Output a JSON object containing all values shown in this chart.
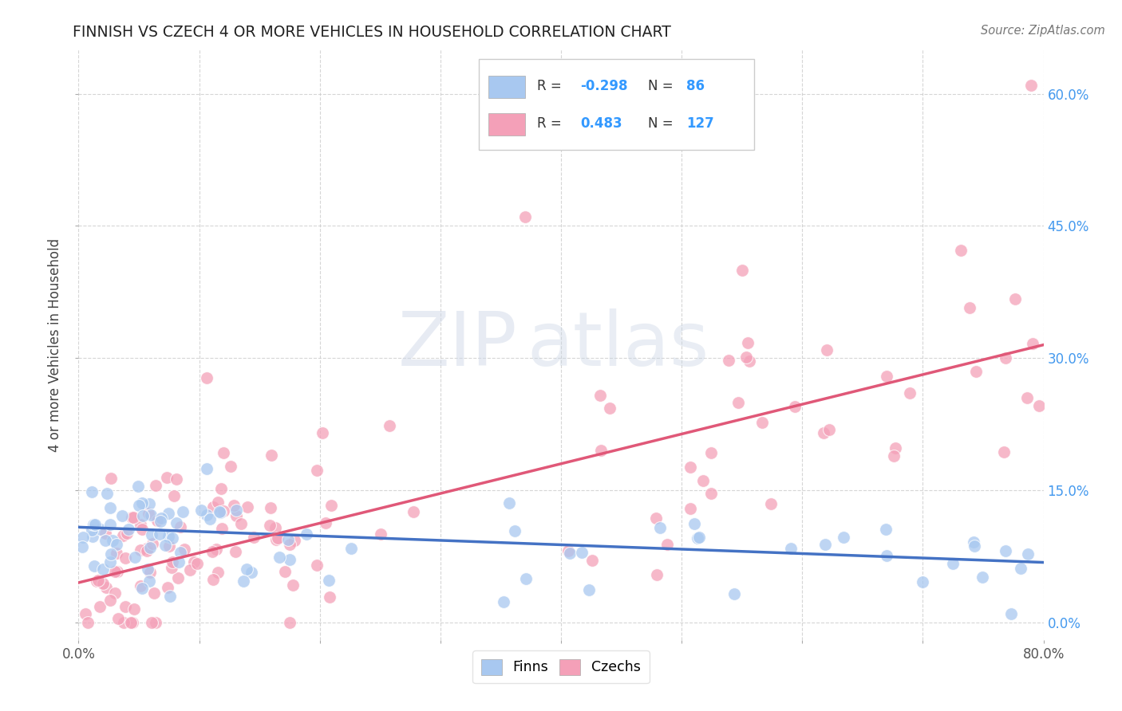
{
  "title": "FINNISH VS CZECH 4 OR MORE VEHICLES IN HOUSEHOLD CORRELATION CHART",
  "source": "Source: ZipAtlas.com",
  "ylabel": "4 or more Vehicles in Household",
  "xlim": [
    0.0,
    0.8
  ],
  "ylim": [
    -0.02,
    0.65
  ],
  "legend_r_finn": "-0.298",
  "legend_n_finn": "86",
  "legend_r_czech": "0.483",
  "legend_n_czech": "127",
  "finn_color": "#a8c8f0",
  "czech_color": "#f4a0b8",
  "finn_line_color": "#4472c4",
  "czech_line_color": "#e05878",
  "background_color": "#ffffff",
  "grid_color": "#cccccc",
  "watermark_zip": "ZIP",
  "watermark_atlas": "atlas",
  "finn_line_x0": 0.0,
  "finn_line_x1": 0.8,
  "finn_line_y0": 0.108,
  "finn_line_y1": 0.068,
  "czech_line_x0": 0.0,
  "czech_line_x1": 0.8,
  "czech_line_y0": 0.045,
  "czech_line_y1": 0.315
}
